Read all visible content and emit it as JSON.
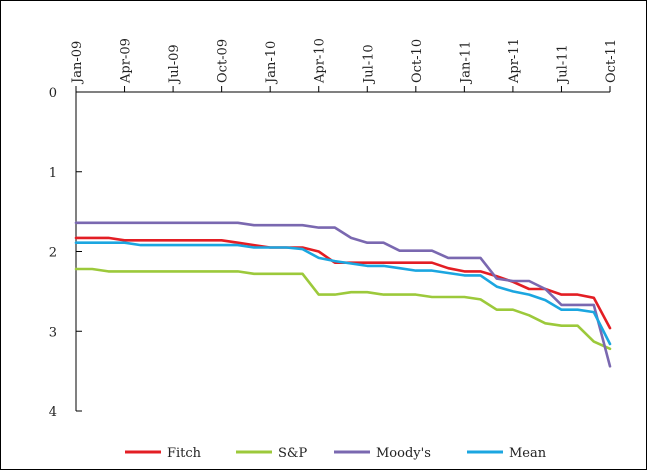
{
  "chart_data": {
    "type": "line",
    "title": "",
    "xlabel": "",
    "ylabel": "",
    "y_inverted": true,
    "ylim": [
      0,
      4
    ],
    "yticks": [
      0,
      1,
      2,
      3,
      4
    ],
    "x_axis_position": "top",
    "x_ticks": [
      "Jan-09",
      "Apr-09",
      "Jul-09",
      "Oct-09",
      "Jan-10",
      "Apr-10",
      "Jul-10",
      "Oct-10",
      "Jan-11",
      "Apr-11",
      "Jul-11",
      "Oct-11"
    ],
    "x": [
      "Jan-09",
      "Feb-09",
      "Mar-09",
      "Apr-09",
      "May-09",
      "Jun-09",
      "Jul-09",
      "Aug-09",
      "Sep-09",
      "Oct-09",
      "Nov-09",
      "Dec-09",
      "Jan-10",
      "Feb-10",
      "Mar-10",
      "Apr-10",
      "May-10",
      "Jun-10",
      "Jul-10",
      "Aug-10",
      "Sep-10",
      "Oct-10",
      "Nov-10",
      "Dec-10",
      "Jan-11",
      "Feb-11",
      "Mar-11",
      "Apr-11",
      "May-11",
      "Jun-11",
      "Jul-11",
      "Aug-11",
      "Sep-11",
      "Oct-11"
    ],
    "legend_position": "bottom",
    "grid": false,
    "series": [
      {
        "name": "Fitch",
        "color": "#e31e24",
        "values": [
          1.83,
          1.83,
          1.83,
          1.86,
          1.86,
          1.86,
          1.86,
          1.86,
          1.86,
          1.86,
          1.89,
          1.92,
          1.95,
          1.95,
          1.95,
          2.0,
          2.14,
          2.14,
          2.14,
          2.14,
          2.14,
          2.14,
          2.14,
          2.21,
          2.25,
          2.25,
          2.31,
          2.38,
          2.47,
          2.47,
          2.54,
          2.54,
          2.58,
          2.96
        ]
      },
      {
        "name": "S&P",
        "color": "#9cc93b",
        "values": [
          2.22,
          2.22,
          2.25,
          2.25,
          2.25,
          2.25,
          2.25,
          2.25,
          2.25,
          2.25,
          2.25,
          2.28,
          2.28,
          2.28,
          2.28,
          2.54,
          2.54,
          2.51,
          2.51,
          2.54,
          2.54,
          2.54,
          2.57,
          2.57,
          2.57,
          2.6,
          2.73,
          2.73,
          2.8,
          2.9,
          2.93,
          2.93,
          3.13,
          3.22
        ]
      },
      {
        "name": "Moody's",
        "color": "#7a68b0",
        "values": [
          1.64,
          1.64,
          1.64,
          1.64,
          1.64,
          1.64,
          1.64,
          1.64,
          1.64,
          1.64,
          1.64,
          1.67,
          1.67,
          1.67,
          1.67,
          1.7,
          1.7,
          1.83,
          1.89,
          1.89,
          1.99,
          1.99,
          1.99,
          2.08,
          2.08,
          2.08,
          2.34,
          2.37,
          2.37,
          2.47,
          2.67,
          2.67,
          2.67,
          3.44
        ]
      },
      {
        "name": "Mean",
        "color": "#1ba6e0",
        "values": [
          1.89,
          1.89,
          1.89,
          1.89,
          1.92,
          1.92,
          1.92,
          1.92,
          1.92,
          1.92,
          1.92,
          1.95,
          1.95,
          1.95,
          1.97,
          2.08,
          2.12,
          2.15,
          2.18,
          2.18,
          2.21,
          2.24,
          2.24,
          2.27,
          2.3,
          2.3,
          2.44,
          2.5,
          2.54,
          2.61,
          2.73,
          2.73,
          2.76,
          3.16
        ]
      }
    ]
  }
}
